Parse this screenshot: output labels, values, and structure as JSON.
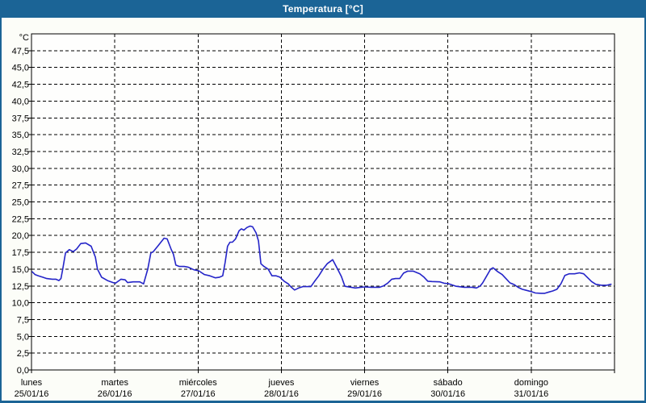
{
  "window": {
    "title": "Temperatura [°C]"
  },
  "colors": {
    "titlebar": "#1b6496",
    "window_border": "#1b6496",
    "background": "#fcfdf8",
    "plot_background": "#fefefd",
    "grid": "#000000",
    "axis_text": "#000000",
    "title_text": "#ffffff",
    "line": "#2424c8"
  },
  "chart_data": {
    "type": "line",
    "title": "Temperatura [°C]",
    "ylabel": "°C",
    "xlabel": "",
    "legend": "none",
    "grid": "dashed",
    "ylim": [
      0,
      50
    ],
    "y_tick_step": 2.5,
    "y_ticks": {
      "values": [
        47.5,
        45.0,
        42.5,
        40.0,
        37.5,
        35.0,
        32.5,
        30.0,
        27.5,
        25.0,
        22.5,
        20.0,
        17.5,
        15.0,
        12.5,
        10.0,
        7.5,
        5.0,
        2.5,
        0.0
      ],
      "labels": [
        "47,5",
        "45,0",
        "42,5",
        "40,0",
        "37,5",
        "35,0",
        "32,5",
        "30,0",
        "27,5",
        "25,0",
        "22,5",
        "20,0",
        "17,5",
        "15,0",
        "12,5",
        "10,0",
        "7,5",
        "5,0",
        "2,5",
        "0,0"
      ]
    },
    "x_axis": {
      "unit": "hours",
      "range": [
        0,
        168
      ],
      "days": [
        {
          "name": "lunes",
          "date": "25/01/16"
        },
        {
          "name": "martes",
          "date": "26/01/16"
        },
        {
          "name": "miércoles",
          "date": "27/01/16"
        },
        {
          "name": "jueves",
          "date": "28/01/16"
        },
        {
          "name": "viernes",
          "date": "29/01/16"
        },
        {
          "name": "sábado",
          "date": "30/01/16"
        },
        {
          "name": "domingo",
          "date": "31/01/16"
        }
      ]
    },
    "series": [
      {
        "name": "Temperatura",
        "color": "#2424c8",
        "points": [
          [
            0.2,
            14.6
          ],
          [
            1.0,
            14.2
          ],
          [
            2.0,
            14.0
          ],
          [
            3.2,
            13.8
          ],
          [
            4.4,
            13.6
          ],
          [
            6.0,
            13.5
          ],
          [
            7.0,
            13.5
          ],
          [
            7.9,
            13.3
          ],
          [
            8.5,
            13.6
          ],
          [
            9.0,
            15.0
          ],
          [
            9.8,
            17.4
          ],
          [
            10.9,
            17.9
          ],
          [
            12.0,
            17.6
          ],
          [
            13.0,
            18.0
          ],
          [
            14.2,
            18.8
          ],
          [
            15.6,
            18.9
          ],
          [
            17.2,
            18.4
          ],
          [
            18.4,
            16.8
          ],
          [
            19.0,
            15.0
          ],
          [
            20.2,
            13.8
          ],
          [
            21.9,
            13.3
          ],
          [
            23.5,
            13.0
          ],
          [
            24.2,
            12.9
          ],
          [
            25.8,
            13.5
          ],
          [
            27.0,
            13.4
          ],
          [
            27.7,
            13.0
          ],
          [
            29.3,
            13.1
          ],
          [
            31.2,
            13.1
          ],
          [
            32.3,
            12.8
          ],
          [
            33.5,
            15.0
          ],
          [
            34.4,
            17.4
          ],
          [
            35.1,
            17.6
          ],
          [
            36.5,
            18.5
          ],
          [
            38.2,
            19.6
          ],
          [
            39.1,
            19.5
          ],
          [
            40.2,
            18.0
          ],
          [
            40.9,
            17.2
          ],
          [
            41.6,
            15.6
          ],
          [
            42.6,
            15.4
          ],
          [
            44.0,
            15.4
          ],
          [
            45.1,
            15.3
          ],
          [
            46.8,
            14.9
          ],
          [
            48.2,
            14.75
          ],
          [
            49.8,
            14.2
          ],
          [
            51.4,
            14.0
          ],
          [
            53.0,
            13.7
          ],
          [
            54.2,
            13.8
          ],
          [
            55.1,
            14.0
          ],
          [
            55.8,
            16.0
          ],
          [
            56.5,
            18.4
          ],
          [
            57.2,
            19.0
          ],
          [
            57.9,
            19.0
          ],
          [
            58.8,
            19.5
          ],
          [
            59.8,
            20.7
          ],
          [
            60.5,
            21.0
          ],
          [
            61.2,
            20.8
          ],
          [
            62.1,
            21.2
          ],
          [
            63.0,
            21.4
          ],
          [
            63.7,
            21.3
          ],
          [
            64.7,
            20.4
          ],
          [
            65.4,
            19.2
          ],
          [
            66.1,
            15.8
          ],
          [
            67.0,
            15.4
          ],
          [
            68.2,
            15.0
          ],
          [
            69.3,
            14.0
          ],
          [
            70.5,
            14.0
          ],
          [
            71.6,
            13.8
          ],
          [
            72.8,
            13.2
          ],
          [
            74.0,
            12.8
          ],
          [
            74.7,
            12.4
          ],
          [
            75.8,
            11.9
          ],
          [
            77.0,
            12.2
          ],
          [
            78.2,
            12.4
          ],
          [
            80.5,
            12.4
          ],
          [
            81.6,
            13.2
          ],
          [
            82.8,
            14.0
          ],
          [
            84.0,
            15.0
          ],
          [
            85.2,
            15.8
          ],
          [
            86.8,
            16.4
          ],
          [
            88.2,
            15.0
          ],
          [
            89.3,
            13.9
          ],
          [
            90.3,
            12.45
          ],
          [
            92.1,
            12.3
          ],
          [
            93.3,
            12.2
          ],
          [
            94.9,
            12.3
          ],
          [
            96.1,
            12.35
          ],
          [
            97.9,
            12.3
          ],
          [
            100.3,
            12.3
          ],
          [
            101.4,
            12.5
          ],
          [
            102.6,
            12.9
          ],
          [
            103.8,
            13.5
          ],
          [
            104.9,
            13.6
          ],
          [
            106.1,
            13.6
          ],
          [
            107.2,
            14.4
          ],
          [
            108.4,
            14.7
          ],
          [
            110.0,
            14.7
          ],
          [
            111.9,
            14.3
          ],
          [
            113.1,
            13.8
          ],
          [
            114.2,
            13.2
          ],
          [
            115.4,
            13.15
          ],
          [
            117.7,
            13.1
          ],
          [
            118.9,
            12.9
          ],
          [
            120.0,
            12.85
          ],
          [
            122.4,
            12.45
          ],
          [
            124.7,
            12.3
          ],
          [
            127.0,
            12.3
          ],
          [
            128.2,
            12.2
          ],
          [
            129.3,
            12.5
          ],
          [
            130.0,
            12.95
          ],
          [
            131.2,
            14.0
          ],
          [
            132.3,
            15.0
          ],
          [
            133.0,
            15.2
          ],
          [
            134.4,
            14.6
          ],
          [
            135.6,
            14.2
          ],
          [
            136.7,
            13.6
          ],
          [
            137.9,
            12.95
          ],
          [
            139.1,
            12.7
          ],
          [
            140.2,
            12.3
          ],
          [
            141.4,
            12.0
          ],
          [
            142.6,
            11.85
          ],
          [
            144.0,
            11.65
          ],
          [
            145.2,
            11.45
          ],
          [
            146.8,
            11.4
          ],
          [
            147.9,
            11.4
          ],
          [
            149.1,
            11.6
          ],
          [
            150.2,
            11.75
          ],
          [
            151.4,
            12.0
          ],
          [
            152.6,
            12.85
          ],
          [
            153.7,
            14.05
          ],
          [
            154.9,
            14.3
          ],
          [
            156.5,
            14.3
          ],
          [
            157.9,
            14.45
          ],
          [
            159.1,
            14.3
          ],
          [
            160.2,
            13.75
          ],
          [
            161.4,
            13.15
          ],
          [
            162.6,
            12.75
          ],
          [
            164.2,
            12.6
          ],
          [
            165.8,
            12.6
          ],
          [
            167.0,
            12.75
          ]
        ]
      }
    ]
  }
}
